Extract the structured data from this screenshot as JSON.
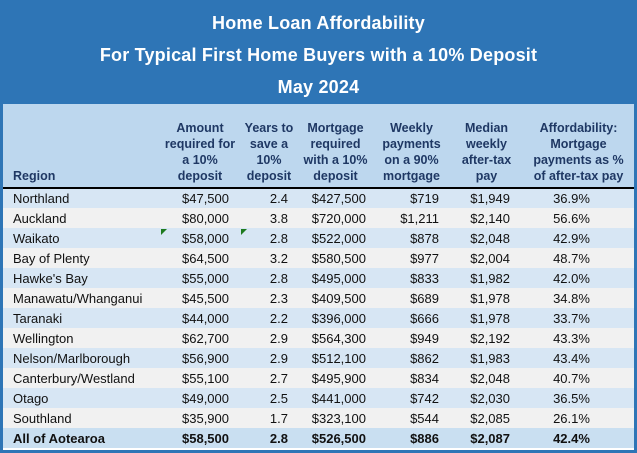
{
  "banner": {
    "title": "Home Loan Affordability",
    "subtitle": "For Typical First Home Buyers with a 10% Deposit",
    "date": "May 2024"
  },
  "colors": {
    "banner_blue": "#2E75B6",
    "header_band_blue": "#BDD7EE",
    "row_blue": "#D7E6F4",
    "row_gray": "#F1F1F1",
    "total_row_blue": "#C9DFF1",
    "header_text_navy": "#1F3864",
    "error_indicator_green": "#1E7A1E"
  },
  "icons": {
    "error_indicator": "excel-green-corner-triangle"
  },
  "chart_data": {
    "type": "table",
    "title": "Home Loan Affordability",
    "subtitle": "For Typical First Home Buyers with a 10% Deposit",
    "period": "May 2024",
    "columns": [
      "Region",
      "Amount\nrequired for\na 10%\ndeposit",
      "Years to\nsave a\n10%\ndeposit",
      "Mortgage\nrequired\nwith a 10%\ndeposit",
      "Weekly\npayments\non a 90%\nmortgage",
      "Median\nweekly\nafter-tax\npay",
      "Affordability:\nMortgage\npayments as %\nof after-tax pay"
    ],
    "rows": [
      {
        "cells": [
          "Northland",
          "$47,500",
          "2.4",
          "$427,500",
          "$719",
          "$1,949",
          "36.9%"
        ]
      },
      {
        "cells": [
          "Auckland",
          "$80,000",
          "3.8",
          "$720,000",
          "$1,211",
          "$2,140",
          "56.6%"
        ]
      },
      {
        "cells": [
          "Waikato",
          "$58,000",
          "2.8",
          "$522,000",
          "$878",
          "$2,048",
          "42.9%"
        ],
        "flags": [
          1,
          2
        ]
      },
      {
        "cells": [
          "Bay of Plenty",
          "$64,500",
          "3.2",
          "$580,500",
          "$977",
          "$2,004",
          "48.7%"
        ]
      },
      {
        "cells": [
          "Hawke's Bay",
          "$55,000",
          "2.8",
          "$495,000",
          "$833",
          "$1,982",
          "42.0%"
        ]
      },
      {
        "cells": [
          "Manawatu/Whanganui",
          "$45,500",
          "2.3",
          "$409,500",
          "$689",
          "$1,978",
          "34.8%"
        ]
      },
      {
        "cells": [
          "Taranaki",
          "$44,000",
          "2.2",
          "$396,000",
          "$666",
          "$1,978",
          "33.7%"
        ]
      },
      {
        "cells": [
          "Wellington",
          "$62,700",
          "2.9",
          "$564,300",
          "$949",
          "$2,192",
          "43.3%"
        ]
      },
      {
        "cells": [
          "Nelson/Marlborough",
          "$56,900",
          "2.9",
          "$512,100",
          "$862",
          "$1,983",
          "43.4%"
        ]
      },
      {
        "cells": [
          "Canterbury/Westland",
          "$55,100",
          "2.7",
          "$495,900",
          "$834",
          "$2,048",
          "40.7%"
        ]
      },
      {
        "cells": [
          "Otago",
          "$49,000",
          "2.5",
          "$441,000",
          "$742",
          "$2,030",
          "36.5%"
        ]
      },
      {
        "cells": [
          "Southland",
          "$35,900",
          "1.7",
          "$323,100",
          "$544",
          "$2,085",
          "26.1%"
        ]
      },
      {
        "cells": [
          "All of Aotearoa",
          "$58,500",
          "2.8",
          "$526,500",
          "$886",
          "$2,087",
          "42.4%"
        ],
        "total": true
      }
    ]
  }
}
